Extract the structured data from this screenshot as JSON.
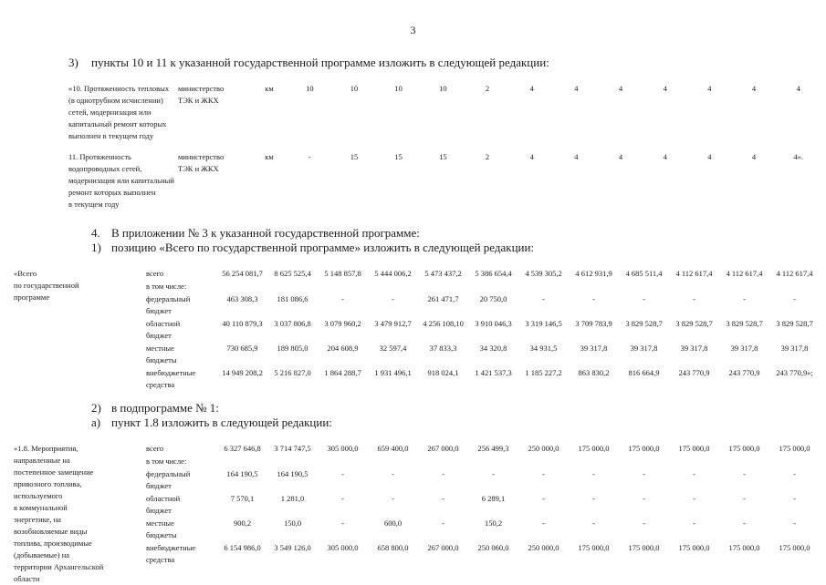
{
  "page_number": "3",
  "sections": {
    "edit_items": {
      "marker": "3)",
      "text": "пункты 10 и 11 к указанной государственной программе изложить в следующей редакции:"
    },
    "appendix": {
      "marker": "4.",
      "text": "В приложении № 3 к указанной государственной программе:"
    },
    "total_position": {
      "marker": "1)",
      "text": "позицию «Всего по государственной программе» изложить в следующей редакции:"
    },
    "subprogram": {
      "marker": "2)",
      "text": "в подпрограмме № 1:"
    },
    "item18": {
      "marker": "а)",
      "text": "пункт 1.8 изложить в следующей редакции:"
    }
  },
  "indicators_table": {
    "rows": [
      {
        "name": [
          "«10. Протяженность тепловых",
          "(в однотрубном исчислении)",
          "сетей, модернизация или",
          "капитальный ремонт которых",
          "выполнен в текущем году"
        ],
        "ministry": [
          "министерство",
          "ТЭК и ЖКХ"
        ],
        "unit": "км",
        "values": [
          "10",
          "10",
          "10",
          "10",
          "2",
          "4",
          "4",
          "4",
          "4",
          "4",
          "4",
          "4"
        ]
      },
      {
        "name": [
          "11. Протяженность",
          "водопроводных сетей,",
          "модернизация или капитальный",
          "ремонт которых выполнен",
          "в текущем году"
        ],
        "ministry": [
          "министерство",
          "ТЭК и ЖКХ"
        ],
        "unit": "км",
        "values": [
          "-",
          "15",
          "15",
          "15",
          "2",
          "4",
          "4",
          "4",
          "4",
          "4",
          "4",
          "4»."
        ]
      }
    ]
  },
  "total_table": {
    "label": [
      "«Всего",
      "по государственной",
      "программе"
    ],
    "rows": [
      {
        "source": "всего",
        "values": [
          "56 254 081,7",
          "8 625 525,4",
          "5 148 857,8",
          "5 444 006,2",
          "5 473 437,2",
          "5 386 654,4",
          "4 539 305,2",
          "4 612 931,9",
          "4 685 511,4",
          "4 112 617,4",
          "4 112 617,4",
          "4 112 617,4"
        ]
      },
      {
        "source": "в том числе:",
        "values": []
      },
      {
        "source": [
          "федеральный",
          "бюджет"
        ],
        "values": [
          "463 308,3",
          "181 086,6",
          "-",
          "-",
          "261 471,7",
          "20 750,0",
          "-",
          "-",
          "-",
          "-",
          "-",
          "-"
        ]
      },
      {
        "source": [
          "областной",
          "бюджет"
        ],
        "values": [
          "40 110 879,3",
          "3 037 806,8",
          "3 079 960,2",
          "3 479 912,7",
          "4 256 108,10",
          "3 910 046,3",
          "3 319 146,5",
          "3 709 783,9",
          "3 829 528,7",
          "3 829 528,7",
          "3 829 528,7",
          "3 829 528,7"
        ]
      },
      {
        "source": [
          "местные",
          "бюджеты"
        ],
        "values": [
          "730 685,9",
          "189 805,0",
          "204 608,9",
          "32 597,4",
          "37 833,3",
          "34 320,8",
          "34 931,5",
          "39 317,8",
          "39 317,8",
          "39 317,8",
          "39 317,8",
          "39 317,8"
        ]
      },
      {
        "source": [
          "внебюджетные",
          "средства"
        ],
        "values": [
          "14 949 208,2",
          "5 216 827,0",
          "1 864 288,7",
          "1 931 496,1",
          "918 024,1",
          "1 421 537,3",
          "1 185 227,2",
          "863 830,2",
          "816 664,9",
          "243 770,9",
          "243 770,9",
          "243 770,9»;"
        ]
      }
    ]
  },
  "item18_table": {
    "label": [
      "«1.8. Мероприятия,",
      "направленные на",
      "постепенное замещение",
      "привозного топлива,",
      "используемого",
      "в коммунальной",
      "энергетике, на",
      "возобновляемые виды",
      "топлива, производимые",
      "(добываемые) на",
      "территории Архангельской",
      "области"
    ],
    "rows": [
      {
        "source": "всего",
        "values": [
          "6 327 646,8",
          "3 714 747,5",
          "305 000,0",
          "659 400,0",
          "267 000,0",
          "256 499,3",
          "250 000,0",
          "175 000,0",
          "175 000,0",
          "175 000,0",
          "175 000,0",
          "175 000,0"
        ]
      },
      {
        "source": "в том числе:",
        "values": []
      },
      {
        "source": [
          "федеральный",
          "бюджет"
        ],
        "values": [
          "164 190,5",
          "164 190,5",
          "-",
          "-",
          "-",
          "-",
          "-",
          "-",
          "-",
          "-",
          "-",
          "-"
        ]
      },
      {
        "source": [
          "областной",
          "бюджет"
        ],
        "values": [
          "7 570,1",
          "1 281,0",
          "-",
          "-",
          "-",
          "6 289,1",
          "-",
          "-",
          "-",
          "-",
          "-",
          "-"
        ]
      },
      {
        "source": [
          "местные",
          "бюджеты"
        ],
        "values": [
          "900,2",
          "150,0",
          "-",
          "600,0",
          "-",
          "150,2",
          "-",
          "-",
          "-",
          "-",
          "-",
          "-"
        ]
      },
      {
        "source": [
          "внебюджетные",
          "средства"
        ],
        "values": [
          "6 154 986,0",
          "3 549 126,0",
          "305 000,0",
          "658 800,0",
          "267 000,0",
          "250 060,0",
          "250 000,0",
          "175 000,0",
          "175 000,0",
          "175 000,0",
          "175 000,0",
          "175 000,0"
        ]
      }
    ]
  }
}
